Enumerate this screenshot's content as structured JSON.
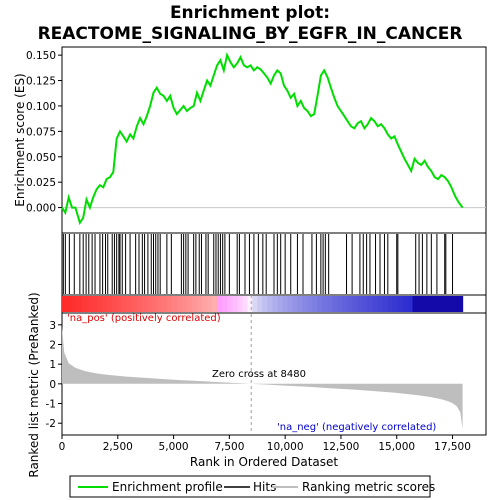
{
  "chart_data": {
    "type": "line",
    "title_line1": "Enrichment plot:",
    "title_line2": "REACTOME_SIGNALING_BY_EGFR_IN_CANCER",
    "es_ylabel": "Enrichment score (ES)",
    "metric_ylabel": "Ranked list metric (PreRanked)",
    "xlabel": "Rank in Ordered Dataset",
    "xlim": [
      0,
      19000
    ],
    "x_ticks": [
      0,
      2500,
      5000,
      7500,
      10000,
      12500,
      15000,
      17500
    ],
    "x_tick_labels": [
      "0",
      "2,500",
      "5,000",
      "7,500",
      "10,000",
      "12,500",
      "15,000",
      "17,500"
    ],
    "es_ylim": [
      -0.025,
      0.158
    ],
    "es_ticks": [
      0.0,
      0.025,
      0.05,
      0.075,
      0.1,
      0.125,
      0.15
    ],
    "es_tick_labels": [
      "0.000",
      "0.025",
      "0.050",
      "0.075",
      "0.100",
      "0.125",
      "0.150"
    ],
    "metric_ylim": [
      -2.6,
      3.6
    ],
    "metric_ticks": [
      3,
      2,
      1,
      0,
      -1,
      -2
    ],
    "metric_tick_labels": [
      "3",
      "2",
      "1",
      "0",
      "-1",
      "-2"
    ],
    "pos_label": "'na_pos' (positively correlated)",
    "neg_label": "'na_neg' (negatively correlated)",
    "zero_cross_label": "Zero cross at 8480",
    "zero_cross": 8480,
    "n_genes": 17950,
    "series": [
      {
        "name": "Enrichment profile",
        "color": "#00dd00",
        "x": [
          0,
          150,
          300,
          450,
          600,
          800,
          950,
          1100,
          1250,
          1400,
          1550,
          1700,
          1850,
          2000,
          2150,
          2300,
          2450,
          2600,
          2750,
          2900,
          3050,
          3200,
          3350,
          3500,
          3650,
          3800,
          3950,
          4100,
          4250,
          4400,
          4550,
          4700,
          4850,
          5000,
          5150,
          5300,
          5450,
          5600,
          5750,
          5900,
          6050,
          6200,
          6350,
          6500,
          6650,
          6800,
          6950,
          7100,
          7250,
          7400,
          7550,
          7700,
          7850,
          8000,
          8150,
          8300,
          8450,
          8600,
          8750,
          8900,
          9050,
          9200,
          9350,
          9500,
          9650,
          9800,
          9950,
          10100,
          10250,
          10400,
          10550,
          10700,
          10850,
          11000,
          11150,
          11300,
          11450,
          11600,
          11750,
          11900,
          12050,
          12200,
          12350,
          12500,
          12650,
          12800,
          12950,
          13100,
          13250,
          13400,
          13550,
          13700,
          13850,
          14000,
          14150,
          14300,
          14450,
          14600,
          14750,
          14900,
          15050,
          15200,
          15350,
          15500,
          15650,
          15800,
          15950,
          16100,
          16250,
          16400,
          16550,
          16700,
          16850,
          17000,
          17150,
          17300,
          17450,
          17600,
          17750,
          17950
        ],
        "values": [
          0.0,
          -0.005,
          0.01,
          0.0,
          0.0,
          -0.015,
          -0.01,
          0.008,
          0.0,
          0.01,
          0.018,
          0.022,
          0.02,
          0.028,
          0.03,
          0.035,
          0.068,
          0.075,
          0.07,
          0.065,
          0.072,
          0.068,
          0.08,
          0.088,
          0.082,
          0.09,
          0.1,
          0.113,
          0.118,
          0.112,
          0.11,
          0.105,
          0.11,
          0.098,
          0.092,
          0.096,
          0.1,
          0.095,
          0.098,
          0.1,
          0.113,
          0.105,
          0.115,
          0.125,
          0.12,
          0.13,
          0.14,
          0.145,
          0.135,
          0.15,
          0.143,
          0.138,
          0.142,
          0.148,
          0.14,
          0.138,
          0.14,
          0.135,
          0.138,
          0.136,
          0.132,
          0.128,
          0.122,
          0.13,
          0.135,
          0.132,
          0.12,
          0.115,
          0.108,
          0.112,
          0.1,
          0.105,
          0.098,
          0.095,
          0.09,
          0.092,
          0.11,
          0.13,
          0.135,
          0.128,
          0.118,
          0.108,
          0.1,
          0.095,
          0.09,
          0.085,
          0.08,
          0.078,
          0.083,
          0.085,
          0.078,
          0.082,
          0.088,
          0.085,
          0.08,
          0.082,
          0.078,
          0.072,
          0.068,
          0.07,
          0.062,
          0.055,
          0.048,
          0.042,
          0.036,
          0.048,
          0.044,
          0.042,
          0.046,
          0.04,
          0.036,
          0.03,
          0.028,
          0.032,
          0.03,
          0.026,
          0.02,
          0.012,
          0.006,
          0.0
        ]
      }
    ],
    "hits": [
      60,
      150,
      330,
      550,
      800,
      950,
      1080,
      1200,
      1350,
      1480,
      1700,
      1820,
      1950,
      2050,
      2250,
      2350,
      2450,
      2550,
      2600,
      2700,
      2850,
      3050,
      3300,
      3450,
      3600,
      3700,
      3850,
      4000,
      4100,
      4200,
      4300,
      4400,
      4700,
      4900,
      5350,
      5450,
      5550,
      5650,
      5900,
      6000,
      6150,
      6250,
      6450,
      6550,
      6800,
      6900,
      7000,
      7100,
      7200,
      7300,
      7500,
      7850,
      7950,
      8200,
      8400,
      8600,
      8800,
      9000,
      9150,
      9500,
      9650,
      9800,
      10000,
      10250,
      10550,
      10800,
      11200,
      11400,
      11600,
      11700,
      11800,
      11950,
      12750,
      13000,
      13350,
      13500,
      13650,
      13800,
      14050,
      14250,
      14450,
      14600,
      15000,
      15050,
      15850,
      16000,
      16150,
      16350,
      16550,
      16800,
      17150,
      17200,
      17500
    ],
    "metric_profile": {
      "x": [
        0,
        100,
        300,
        600,
        1000,
        1500,
        2000,
        3000,
        4000,
        5000,
        6000,
        7000,
        8000,
        8480,
        9000,
        10000,
        11000,
        12000,
        13000,
        14000,
        15000,
        15500,
        16000,
        16500,
        17000,
        17300,
        17500,
        17700,
        17850,
        17950
      ],
      "values": [
        2.9,
        1.6,
        1.05,
        0.82,
        0.66,
        0.54,
        0.46,
        0.36,
        0.28,
        0.21,
        0.15,
        0.09,
        0.03,
        0.0,
        -0.03,
        -0.09,
        -0.15,
        -0.22,
        -0.29,
        -0.37,
        -0.46,
        -0.52,
        -0.59,
        -0.67,
        -0.78,
        -0.88,
        -0.98,
        -1.15,
        -1.45,
        -2.3
      ]
    },
    "colors": {
      "es_line": "#00dd00",
      "hit_line": "#000000",
      "metric_fill": "#bebebe",
      "zero_dash": "#a0a0a0",
      "pos_label": "#dd0000",
      "neg_label": "#0000cc"
    }
  },
  "legend": {
    "items": [
      {
        "label": "Enrichment profile",
        "kind": "line",
        "color": "#00dd00"
      },
      {
        "label": "Hits",
        "kind": "line",
        "color": "#000000"
      },
      {
        "label": "Ranking metric scores",
        "kind": "line",
        "color": "#bebebe"
      }
    ]
  }
}
